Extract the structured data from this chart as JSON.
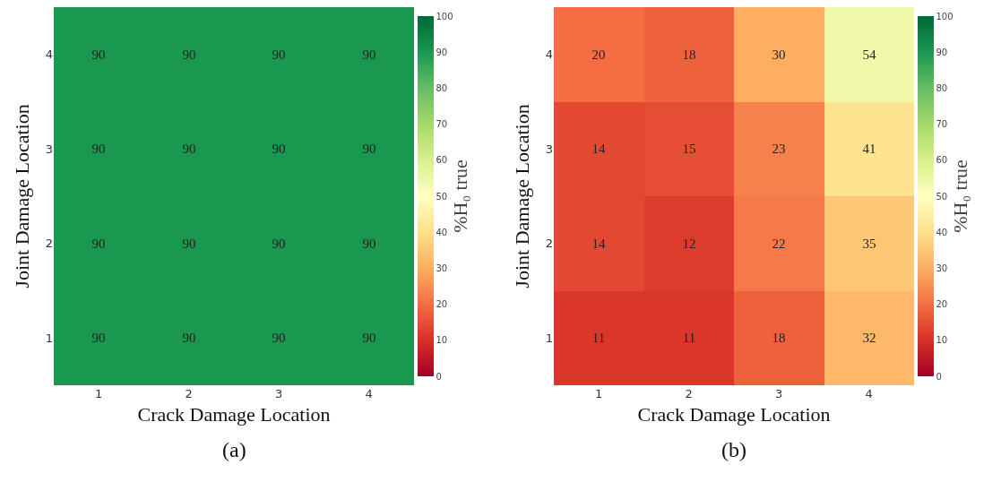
{
  "chart_data": [
    {
      "type": "heatmap",
      "xlabel": "Crack Damage Location",
      "ylabel": "Joint Damage Location",
      "clabel": "%H₀ true",
      "annotations": [
        "(a)"
      ],
      "categories": [
        "1",
        "2",
        "3",
        "4"
      ],
      "y_categories": [
        "4",
        "3",
        "2",
        "1"
      ],
      "cells": [
        [
          90,
          90,
          90,
          90
        ],
        [
          90,
          90,
          90,
          90
        ],
        [
          90,
          90,
          90,
          90
        ],
        [
          90,
          90,
          90,
          90
        ]
      ],
      "data_labels": true,
      "clim": [
        0,
        100
      ],
      "cticks": [
        0,
        10,
        20,
        30,
        40,
        50,
        60,
        70,
        80,
        90,
        100
      ]
    },
    {
      "type": "heatmap",
      "xlabel": "Crack Damage Location",
      "ylabel": "Joint Damage Location",
      "clabel": "%H₀ true",
      "annotations": [
        "(b)"
      ],
      "categories": [
        "1",
        "2",
        "3",
        "4"
      ],
      "y_categories": [
        "4",
        "3",
        "2",
        "1"
      ],
      "cells": [
        [
          20,
          18,
          30,
          54
        ],
        [
          14,
          15,
          23,
          41
        ],
        [
          14,
          12,
          22,
          35
        ],
        [
          11,
          11,
          18,
          32
        ]
      ],
      "data_labels": true,
      "clim": [
        0,
        100
      ],
      "cticks": [
        0,
        10,
        20,
        30,
        40,
        50,
        60,
        70,
        80,
        90,
        100
      ]
    }
  ]
}
